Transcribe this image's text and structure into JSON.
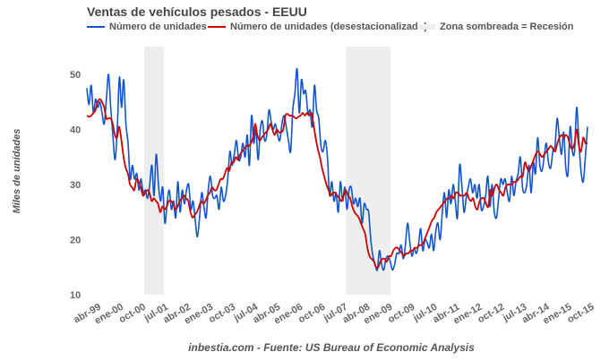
{
  "chart_data": {
    "type": "line",
    "title": "Ventas de vehículos pesados - EEUU",
    "xlabel": "",
    "ylabel": "Miles de unidades",
    "ylim": [
      10,
      52
    ],
    "yticks": [
      10,
      20,
      30,
      40,
      50
    ],
    "grid": false,
    "legend_position": "top",
    "x_start": "1999-04",
    "x_tick_labels": [
      "abr-99",
      "ene-00",
      "oct-00",
      "jul-01",
      "abr-02",
      "ene-03",
      "oct-03",
      "jul-04",
      "abr-05",
      "ene-06",
      "oct-06",
      "jul-07",
      "abr-08",
      "ene-09",
      "oct-09",
      "jul-10",
      "abr-11",
      "ene-12",
      "oct-12",
      "jul-13",
      "abr-14",
      "ene-15",
      "oct-15"
    ],
    "x_tick_months": [
      0,
      9,
      18,
      27,
      36,
      45,
      54,
      63,
      72,
      81,
      90,
      99,
      108,
      117,
      126,
      135,
      144,
      153,
      162,
      171,
      180,
      189,
      198
    ],
    "recessions": [
      {
        "start_month": 23,
        "end_month": 31
      },
      {
        "start_month": 104,
        "end_month": 122
      }
    ],
    "series": [
      {
        "name": "Número de unidades",
        "color": "#1155cc",
        "values": [
          47.5,
          44.5,
          48,
          43,
          45.5,
          44,
          45,
          43,
          41,
          45.5,
          50,
          44,
          39,
          34.5,
          40,
          49.5,
          44,
          49,
          41,
          37.5,
          31,
          33.5,
          31,
          32,
          29,
          31,
          28.5,
          29,
          27.5,
          30,
          33.5,
          28,
          35.5,
          30,
          27,
          29.5,
          23,
          26.5,
          29,
          25.5,
          27,
          24,
          30.5,
          25,
          29,
          26.5,
          29,
          30,
          25.5,
          27,
          23.5,
          20.5,
          24,
          28.5,
          26,
          24,
          29,
          31.5,
          28,
          27.5,
          28,
          25.5,
          29.5,
          27,
          28,
          31,
          36,
          33.5,
          35.5,
          38,
          34.5,
          35,
          37.5,
          35,
          39,
          33.5,
          42.5,
          37.5,
          40,
          34.5,
          40,
          41.5,
          38,
          39,
          43.5,
          41.5,
          40,
          41,
          39,
          38,
          41,
          42.5,
          40.5,
          38,
          36,
          43.5,
          46.5,
          51,
          43,
          49,
          46.5,
          47,
          43,
          43.5,
          40.5,
          48,
          43.5,
          42,
          37,
          36,
          38,
          35,
          28,
          30.5,
          27,
          28.5,
          25,
          30.5,
          27,
          29.5,
          25.5,
          29,
          29.5,
          26.5,
          27.5,
          26,
          27.5,
          23,
          26.5,
          25.5,
          25,
          20,
          17,
          15.5,
          14.5,
          18,
          15.5,
          14.5,
          16.5,
          17,
          16,
          14.5,
          15.5,
          17.5,
          17.5,
          19,
          16.5,
          19,
          23,
          19.5,
          17,
          18.5,
          17.5,
          19,
          22,
          18,
          20,
          19.5,
          18.5,
          21,
          18,
          21.5,
          23,
          20,
          25,
          28.5,
          24,
          29,
          26.5,
          30,
          27,
          24,
          33.5,
          30,
          25,
          27.5,
          29.5,
          31,
          28.5,
          30,
          27.5,
          30,
          25.5,
          26,
          28,
          31.5,
          26,
          30,
          25,
          24,
          27.5,
          31,
          30,
          31,
          28.5,
          27,
          31.5,
          28,
          30.5,
          32,
          35,
          29.5,
          28.5,
          30,
          33.5,
          28.5,
          34,
          32,
          38.5,
          33.5,
          32.5,
          35,
          37.5,
          34,
          33,
          36,
          37,
          42,
          38.5,
          35.5,
          39.5,
          33,
          32,
          40.5,
          36,
          36,
          44,
          38,
          32.5,
          30.5,
          35,
          40.5
        ],
        "note": "values estimated from plot, thousands of units"
      },
      {
        "name": "Número de unidades (desestacionalizado)",
        "color": "#cc0000",
        "values": [
          42.5,
          42.3,
          42.5,
          43,
          43.5,
          45,
          45.5,
          45,
          44,
          42,
          42,
          42,
          41,
          39,
          38.5,
          40.5,
          38,
          35,
          33,
          32,
          30,
          29.5,
          29,
          31,
          30.5,
          29.5,
          28,
          28.5,
          29,
          28.5,
          27,
          27.5,
          27,
          26.5,
          25,
          26,
          25.5,
          26,
          27,
          27,
          26.5,
          25.5,
          26,
          27,
          27.5,
          28,
          27.5,
          27,
          25,
          24,
          24.5,
          25,
          26,
          27,
          26.5,
          27,
          28,
          28.5,
          29.5,
          29,
          29,
          30,
          31,
          31,
          32,
          33,
          32.5,
          34,
          34,
          35,
          34.5,
          35.5,
          36,
          36.5,
          37,
          37,
          37.5,
          38.5,
          41,
          39,
          38,
          38.5,
          39,
          39.5,
          40,
          41,
          40,
          39,
          40,
          39.5,
          39.5,
          40,
          42.5,
          42.8,
          42.5,
          42.5,
          42.3,
          42,
          42.3,
          42.5,
          43,
          42.5,
          43,
          42.5,
          43,
          41,
          38.5,
          36.5,
          35,
          33,
          31.5,
          30,
          29,
          28,
          28.5,
          28.5,
          28,
          27.5,
          27,
          28,
          29,
          28,
          27.5,
          26,
          25,
          24.5,
          24,
          23,
          22,
          21,
          18.5,
          17,
          16.5,
          16,
          15,
          15,
          16,
          16.5,
          16.5,
          16,
          17,
          17,
          18,
          18.5,
          18.5,
          18,
          17.5,
          17,
          17.5,
          17.5,
          18,
          18,
          18.5,
          18.5,
          19,
          19,
          19.5,
          20.5,
          21.5,
          22.5,
          23.5,
          24,
          25,
          25.5,
          26,
          26.5,
          27,
          27.5,
          27.5,
          28,
          27.5,
          28.5,
          28.5,
          28,
          28,
          28,
          28.5,
          27.5,
          27,
          27.5,
          26,
          25.5,
          27,
          27.5,
          27.5,
          26.5,
          26,
          29,
          28,
          29.5,
          30,
          29,
          28.5,
          28,
          29.5,
          30,
          30,
          30,
          30.5,
          30.5,
          31,
          31.5,
          31.5,
          34,
          33,
          32.5,
          33.5,
          34.5,
          35.5,
          36,
          35.5,
          35,
          35.5,
          36,
          36.5,
          37,
          36.5,
          36,
          37.5,
          38.5,
          39,
          38.5,
          39,
          38.5,
          37,
          36.5,
          37.5,
          40,
          37,
          36,
          38.5,
          37.5,
          37.5
        ],
        "note": "values estimated from plot, thousands of units"
      }
    ]
  },
  "legend": {
    "series1_label": "Número de unidades",
    "series2_label": "Número de unidades (desestacionalizado)",
    "shade_label": "Zona sombreada = Recesión"
  },
  "footer": "inbestia.com - Fuente: US Bureau of Economic Analysis",
  "colors": {
    "series1": "#1155cc",
    "series2": "#cc0000",
    "recession": "#eeeeee",
    "text": "#555555"
  }
}
